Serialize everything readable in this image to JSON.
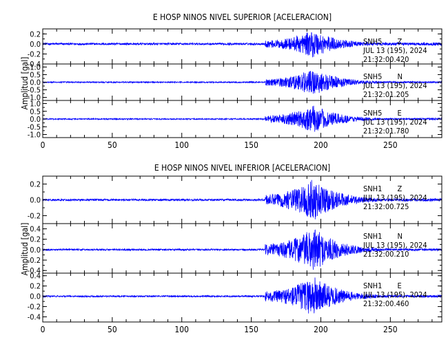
{
  "chart_data": [
    {
      "type": "line",
      "title": "E HOSP NINOS NIVEL SUPERIOR [ACELERACION]",
      "ylabel": "Amplitud [gal]",
      "xlabel": "",
      "xlim": [
        0,
        287
      ],
      "xticks": [
        0,
        50,
        100,
        150,
        200,
        250
      ],
      "series_color": "#0000ff",
      "panels": [
        {
          "station": "SNH5",
          "component": "Z",
          "date": "JUL 13 (195), 2024",
          "time": "21:32:00.420",
          "ylim": [
            -0.4,
            0.3
          ],
          "yticks": [
            0.2,
            0.0,
            -0.2,
            -0.4
          ],
          "yticklabels": [
            "0.2",
            "0.0",
            "-0.2",
            "-0.4"
          ],
          "noise_amplitude": 0.02,
          "peak_amplitude": 0.28,
          "event_onset_s": 160,
          "peak_time_s": 195
        },
        {
          "station": "SNH5",
          "component": "N",
          "date": "JUL 13 (195), 2024",
          "time": "21:32:01.205",
          "ylim": [
            -1.2,
            1.2
          ],
          "yticks": [
            1.0,
            0.5,
            0.0,
            -0.5,
            -1.0
          ],
          "yticklabels": [
            "1.0",
            "0.5",
            "0.0",
            "-0.5",
            "-1.0"
          ],
          "noise_amplitude": 0.04,
          "peak_amplitude": 0.9,
          "event_onset_s": 160,
          "peak_time_s": 195
        },
        {
          "station": "SNH5",
          "component": "E",
          "date": "JUL 13 (195), 2024",
          "time": "21:32:01.780",
          "ylim": [
            -1.2,
            1.2
          ],
          "yticks": [
            1.0,
            0.5,
            0.0,
            -0.5,
            -1.0
          ],
          "yticklabels": [
            "1.0",
            "0.5",
            "0.0",
            "-0.5",
            "-1.0"
          ],
          "noise_amplitude": 0.04,
          "peak_amplitude": 0.9,
          "event_onset_s": 160,
          "peak_time_s": 195
        }
      ]
    },
    {
      "type": "line",
      "title": "E HOSP NINOS NIVEL INFERIOR [ACELERACION]",
      "ylabel": "Amplitud [gal]",
      "xlabel": "",
      "xlim": [
        0,
        287
      ],
      "xticks": [
        0,
        50,
        100,
        150,
        200,
        250
      ],
      "series_color": "#0000ff",
      "panels": [
        {
          "station": "SNH1",
          "component": "Z",
          "date": "JUL 13 (195), 2024",
          "time": "21:32:00.725",
          "ylim": [
            -0.3,
            0.3
          ],
          "yticks": [
            0.2,
            0.0,
            -0.2
          ],
          "yticklabels": [
            "0.2",
            "0.0",
            "-0.2"
          ],
          "noise_amplitude": 0.012,
          "peak_amplitude": 0.27,
          "event_onset_s": 160,
          "peak_time_s": 195
        },
        {
          "station": "SNH1",
          "component": "N",
          "date": "JUL 13 (195), 2024",
          "time": "21:32:00.210",
          "ylim": [
            -0.45,
            0.5
          ],
          "yticks": [
            0.4,
            0.2,
            0.0,
            -0.2,
            -0.4
          ],
          "yticklabels": [
            "0.4",
            "0.2",
            "0.0",
            "-0.2",
            "-0.4"
          ],
          "noise_amplitude": 0.015,
          "peak_amplitude": 0.42,
          "event_onset_s": 160,
          "peak_time_s": 195
        },
        {
          "station": "SNH1",
          "component": "E",
          "date": "JUL 13 (195), 2024",
          "time": "21:32:00.460",
          "ylim": [
            -0.5,
            0.45
          ],
          "yticks": [
            0.4,
            0.2,
            0.0,
            -0.2,
            -0.4
          ],
          "yticklabels": [
            "0.4",
            "0.2",
            "0.0",
            "-0.2",
            "-0.4"
          ],
          "noise_amplitude": 0.015,
          "peak_amplitude": 0.4,
          "event_onset_s": 160,
          "peak_time_s": 195
        }
      ]
    }
  ]
}
